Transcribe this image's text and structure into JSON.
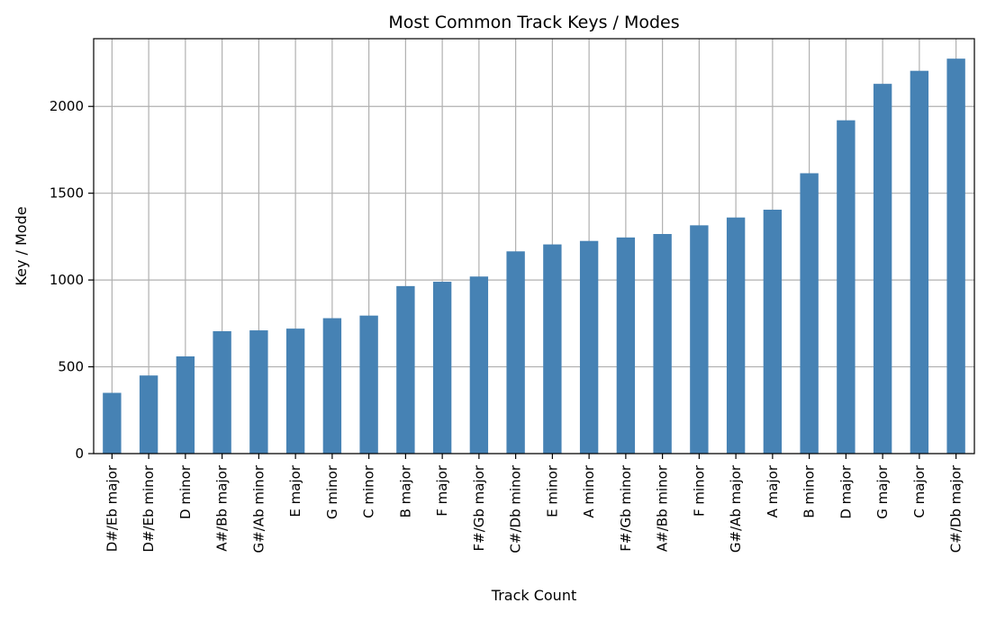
{
  "chart_data": {
    "type": "bar",
    "title": "Most Common Track Keys / Modes",
    "xlabel": "Track Count",
    "ylabel": "Key / Mode",
    "categories": [
      "D#/Eb major",
      "D#/Eb minor",
      "D minor",
      "A#/Bb major",
      "G#/Ab minor",
      "E major",
      "G minor",
      "C minor",
      "B major",
      "F major",
      "F#/Gb major",
      "C#/Db minor",
      "E minor",
      "A minor",
      "F#/Gb minor",
      "A#/Bb minor",
      "F minor",
      "G#/Ab major",
      "A major",
      "B minor",
      "D major",
      "G major",
      "C major",
      "C#/Db major"
    ],
    "values": [
      350,
      450,
      560,
      705,
      710,
      720,
      780,
      795,
      965,
      990,
      1020,
      1165,
      1205,
      1225,
      1245,
      1265,
      1315,
      1360,
      1405,
      1615,
      1920,
      2130,
      2205,
      2275
    ],
    "ylim": [
      0,
      2390
    ],
    "yticks": [
      0,
      500,
      1000,
      1500,
      2000
    ],
    "grid": true,
    "bar_color": "#4682b4",
    "grid_color": "#b0b0b0"
  }
}
